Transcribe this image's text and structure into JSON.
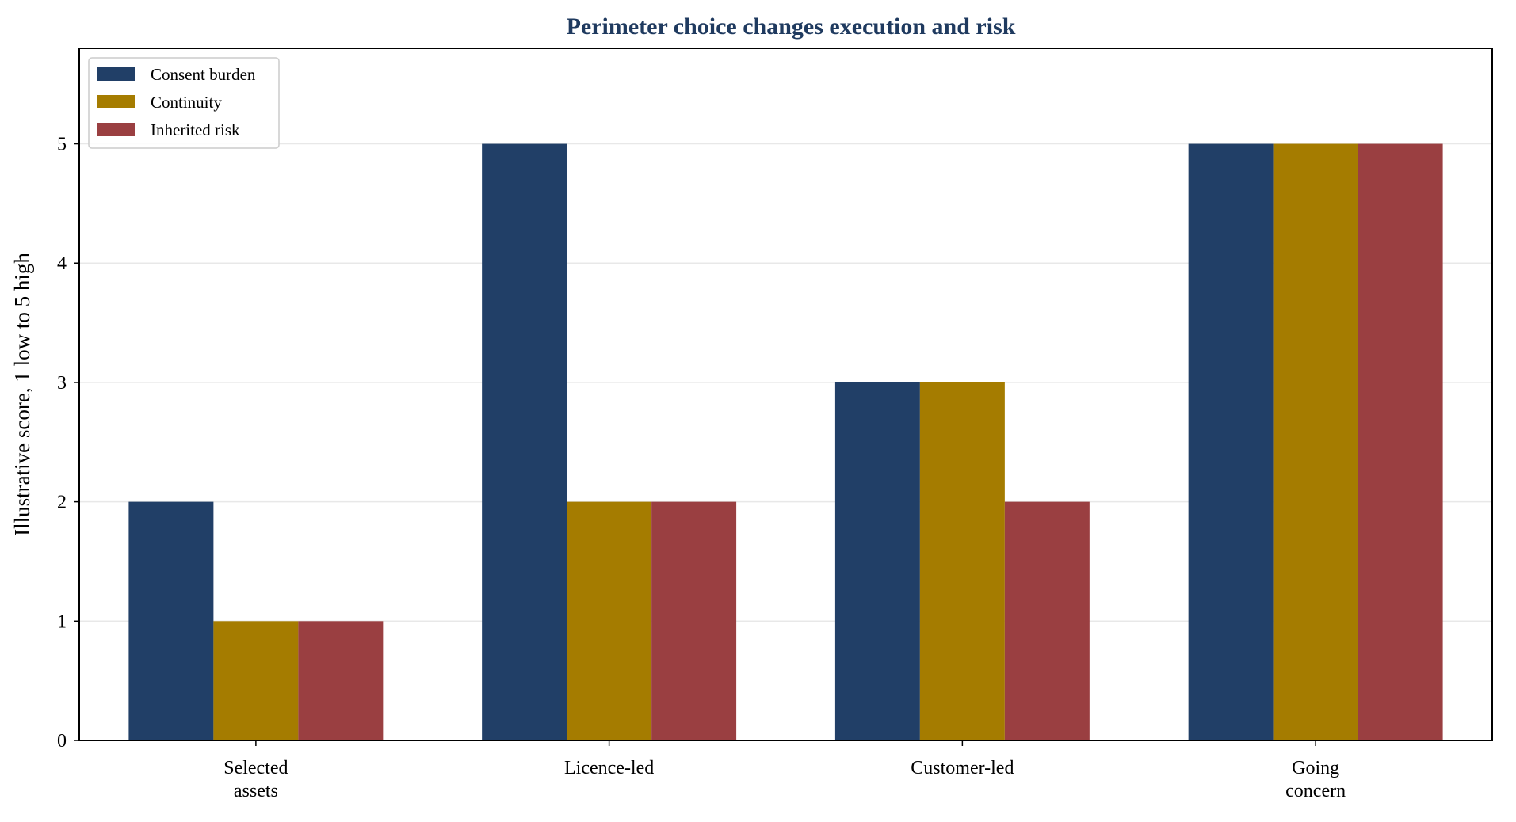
{
  "chart_data": {
    "type": "bar",
    "title": "Perimeter choice changes execution and risk",
    "xlabel": "",
    "ylabel": "Illustrative score, 1 low to 5 high",
    "categories": [
      [
        "Selected",
        "assets"
      ],
      [
        "Licence-led"
      ],
      [
        "Customer-led"
      ],
      [
        "Going",
        "concern"
      ]
    ],
    "series": [
      {
        "name": "Consent burden",
        "color": "#213f67",
        "values": [
          2,
          5,
          3,
          5
        ]
      },
      {
        "name": "Continuity",
        "color": "#a57c00",
        "values": [
          1,
          2,
          3,
          5
        ]
      },
      {
        "name": "Inherited risk",
        "color": "#9a3f41",
        "values": [
          1,
          2,
          2,
          5
        ]
      }
    ],
    "yticks": [
      0,
      1,
      2,
      3,
      4,
      5
    ],
    "ylim": [
      0,
      5.8
    ],
    "grid": "horizontal",
    "legend_position": "top-left",
    "colors": {
      "title": "#1f3a5f",
      "axis": "#000000",
      "grid": "#e8e8e8"
    }
  }
}
